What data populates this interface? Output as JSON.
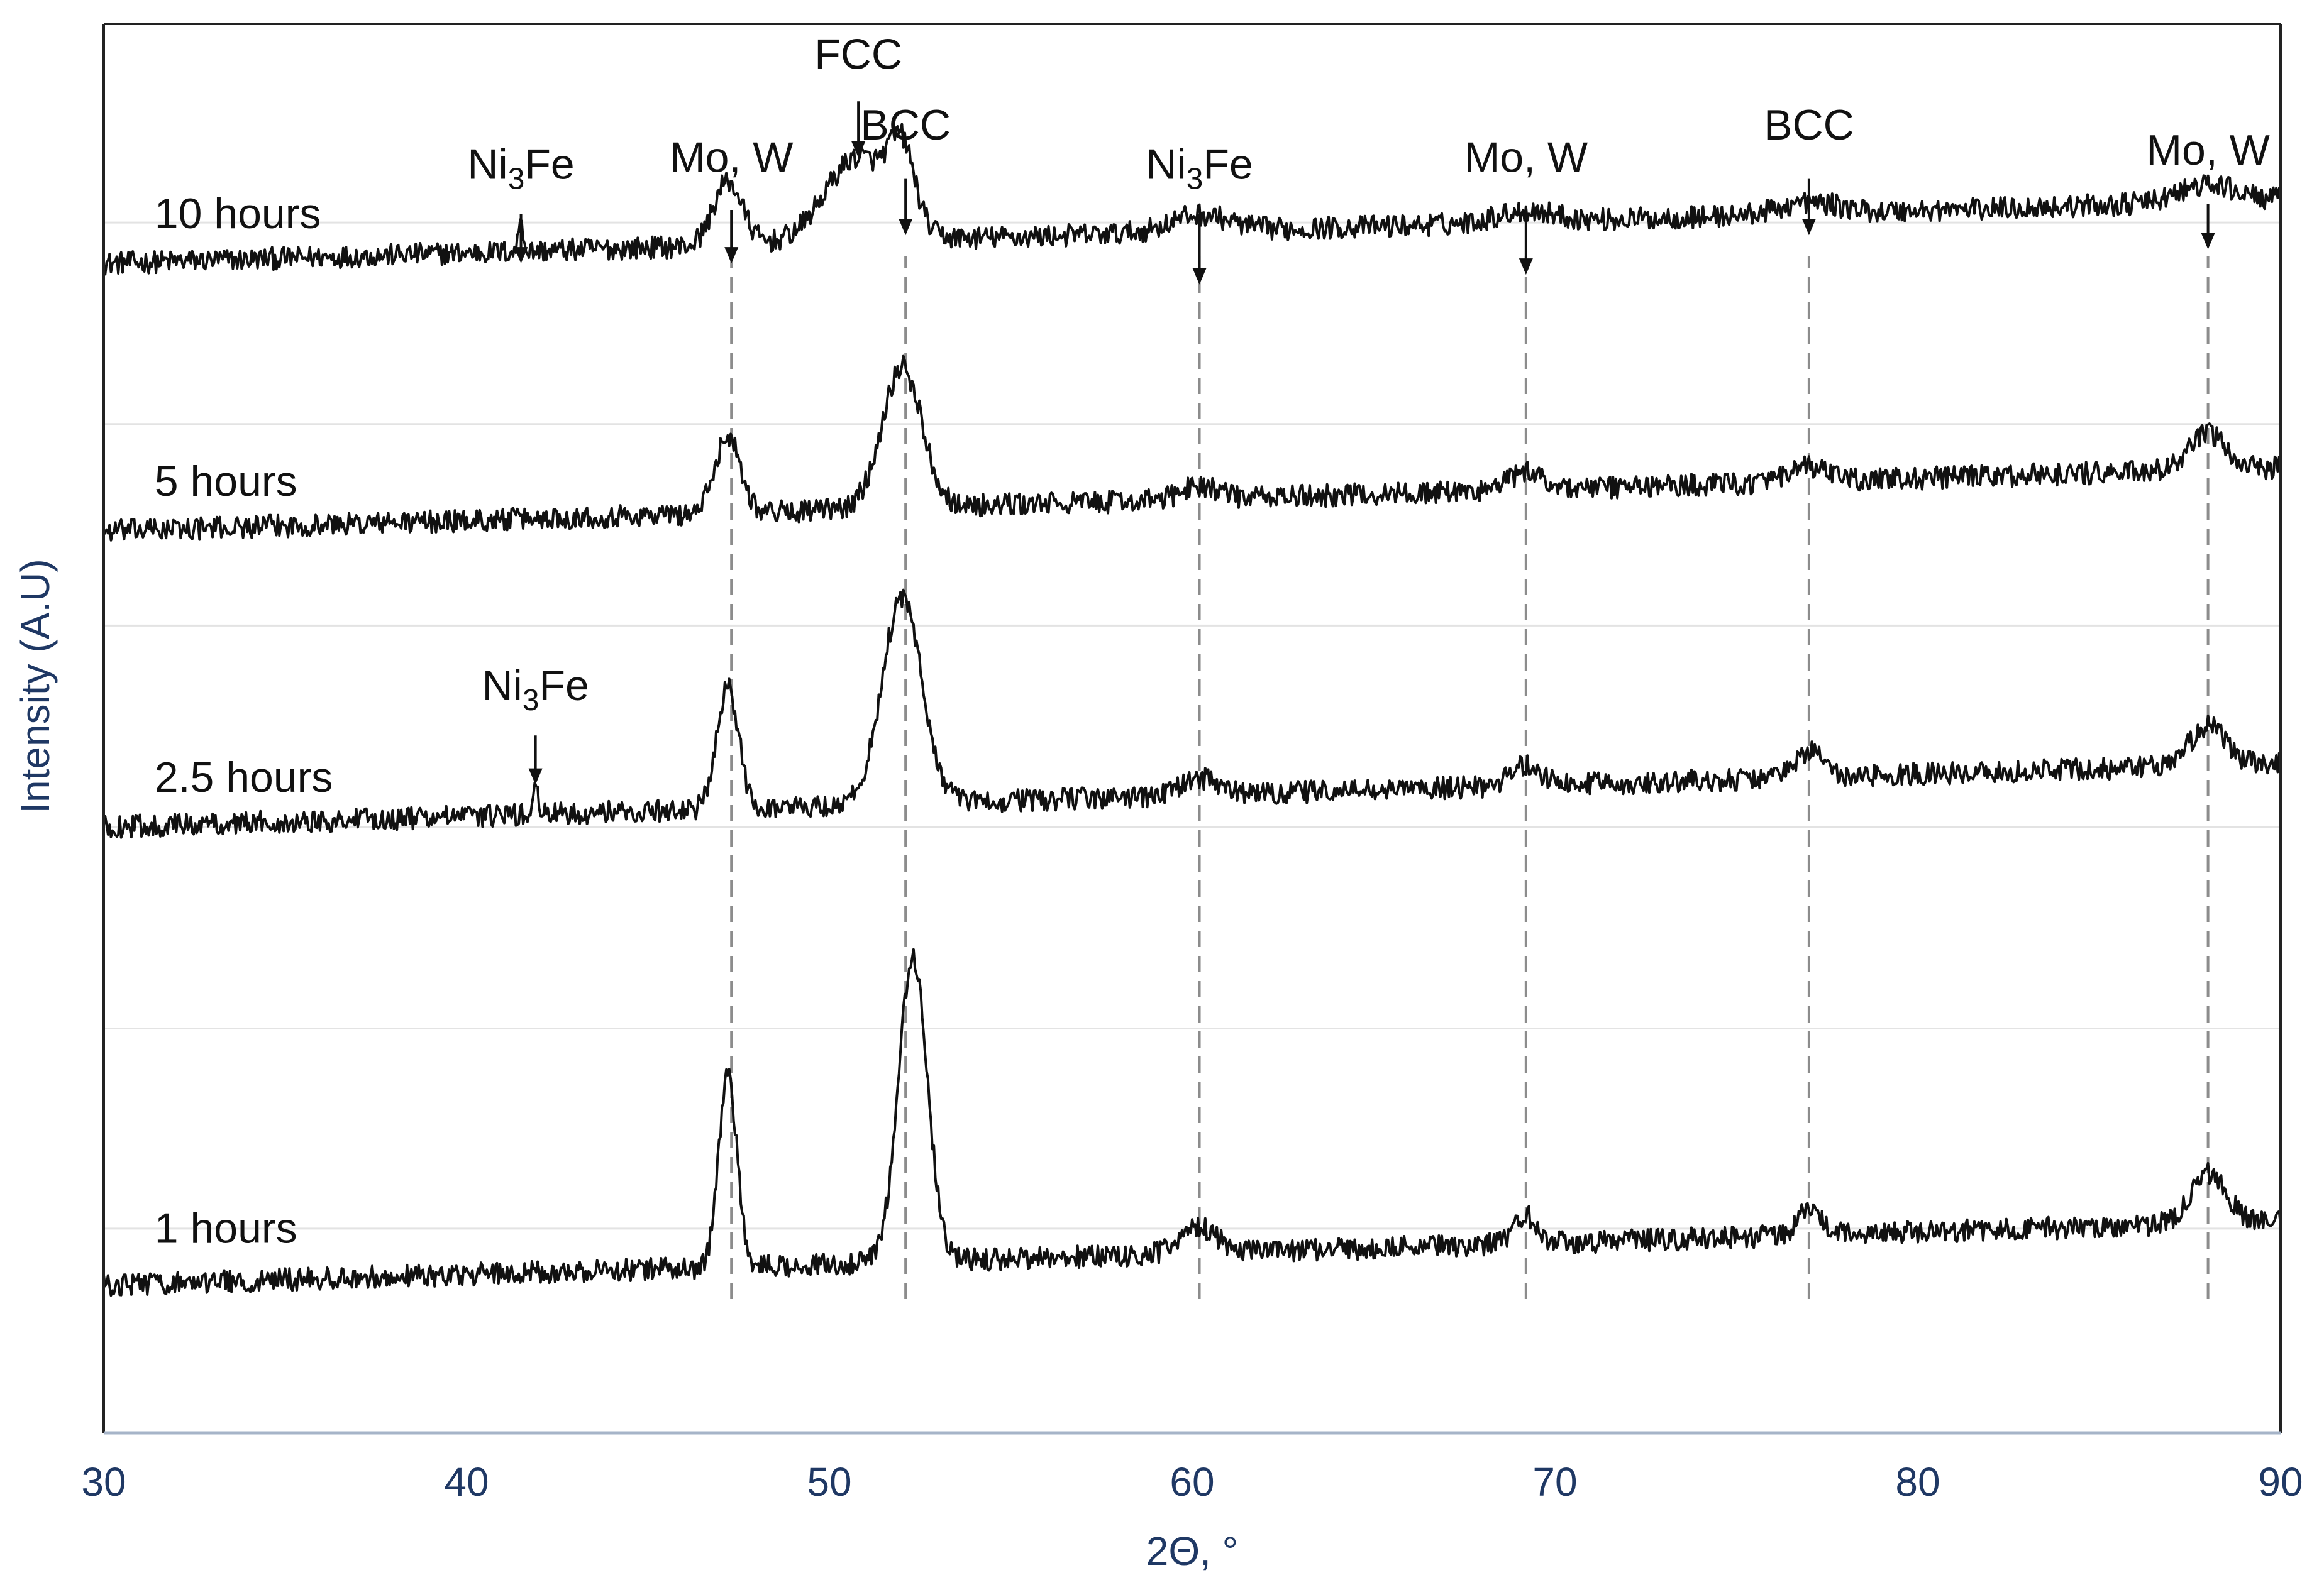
{
  "chart_data": {
    "type": "line",
    "title": "",
    "xlabel": "2Θ, °",
    "ylabel": "Intensity (A.U)",
    "xlim": [
      30,
      90
    ],
    "x_ticks": [
      30,
      40,
      50,
      60,
      70,
      80,
      90
    ],
    "y_ticks_shown": false,
    "grid": "horizontal",
    "series": [
      {
        "name": "10 hours",
        "baseline": 0.83,
        "slope": 0.045,
        "noise": 0.008,
        "peaks": [
          [
            41.5,
            0.025,
            0.06
          ],
          [
            47.2,
            0.045,
            0.4
          ],
          [
            50.8,
            0.06,
            0.9
          ],
          [
            52.0,
            0.05,
            0.35
          ],
          [
            60.2,
            0.012,
            0.8
          ],
          [
            69.2,
            0.008,
            0.8
          ],
          [
            77.0,
            0.008,
            0.8
          ],
          [
            88.0,
            0.012,
            0.8
          ]
        ]
      },
      {
        "name": "5 hours",
        "baseline": 0.64,
        "slope": 0.045,
        "noise": 0.008,
        "peaks": [
          [
            47.2,
            0.055,
            0.35
          ],
          [
            52.0,
            0.1,
            0.55
          ],
          [
            60.2,
            0.01,
            0.5
          ],
          [
            69.2,
            0.012,
            0.5
          ],
          [
            77.0,
            0.01,
            0.5
          ],
          [
            88.0,
            0.025,
            0.5
          ]
        ]
      },
      {
        "name": "2.5 hours",
        "baseline": 0.43,
        "slope": 0.045,
        "noise": 0.008,
        "peaks": [
          [
            41.9,
            0.022,
            0.06
          ],
          [
            47.2,
            0.085,
            0.3
          ],
          [
            52.0,
            0.145,
            0.55
          ],
          [
            60.2,
            0.012,
            0.5
          ],
          [
            69.2,
            0.015,
            0.4
          ],
          [
            77.0,
            0.018,
            0.4
          ],
          [
            88.0,
            0.028,
            0.5
          ]
        ]
      },
      {
        "name": "1 hours",
        "baseline": 0.105,
        "slope": 0.045,
        "noise": 0.008,
        "peaks": [
          [
            47.2,
            0.135,
            0.25
          ],
          [
            52.3,
            0.215,
            0.4
          ],
          [
            60.2,
            0.018,
            0.5
          ],
          [
            69.2,
            0.02,
            0.3
          ],
          [
            77.0,
            0.02,
            0.3
          ],
          [
            88.0,
            0.035,
            0.5
          ]
        ]
      }
    ],
    "reference_lines": [
      47.3,
      52.1,
      60.2,
      69.2,
      77.0,
      88.0
    ],
    "annotations": [
      {
        "base": "Ni",
        "sub": "3",
        "rest": "Fe",
        "x": 41.5,
        "label_y": 0.89,
        "arrow_top": 0.865,
        "arrow_tip": 0.83
      },
      {
        "base": "Mo, W",
        "sub": "",
        "rest": "",
        "x": 47.3,
        "label_y": 0.895,
        "arrow_top": 0.868,
        "arrow_tip": 0.83
      },
      {
        "base": "FCC",
        "sub": "",
        "rest": "",
        "x": 50.8,
        "label_y": 0.968,
        "arrow_top": 0.945,
        "arrow_tip": 0.905
      },
      {
        "base": "BCC",
        "sub": "",
        "rest": "",
        "x": 52.1,
        "label_y": 0.918,
        "arrow_top": 0.89,
        "arrow_tip": 0.85
      },
      {
        "base": "Ni",
        "sub": "3",
        "rest": "Fe",
        "x": 60.2,
        "label_y": 0.89,
        "arrow_top": 0.865,
        "arrow_tip": 0.815
      },
      {
        "base": "Mo, W",
        "sub": "",
        "rest": "",
        "x": 69.2,
        "label_y": 0.895,
        "arrow_top": 0.868,
        "arrow_tip": 0.822
      },
      {
        "base": "BCC",
        "sub": "",
        "rest": "",
        "x": 77.0,
        "label_y": 0.918,
        "arrow_top": 0.89,
        "arrow_tip": 0.85
      },
      {
        "base": "Mo, W",
        "sub": "",
        "rest": "",
        "x": 88.0,
        "label_y": 0.9,
        "arrow_top": 0.872,
        "arrow_tip": 0.84
      },
      {
        "base": "Ni",
        "sub": "3",
        "rest": "Fe",
        "x": 41.9,
        "label_y": 0.52,
        "arrow_top": 0.495,
        "arrow_tip": 0.46
      }
    ],
    "series_label_x": 31.4,
    "series_label_y": [
      0.855,
      0.665,
      0.455,
      0.135
    ]
  }
}
